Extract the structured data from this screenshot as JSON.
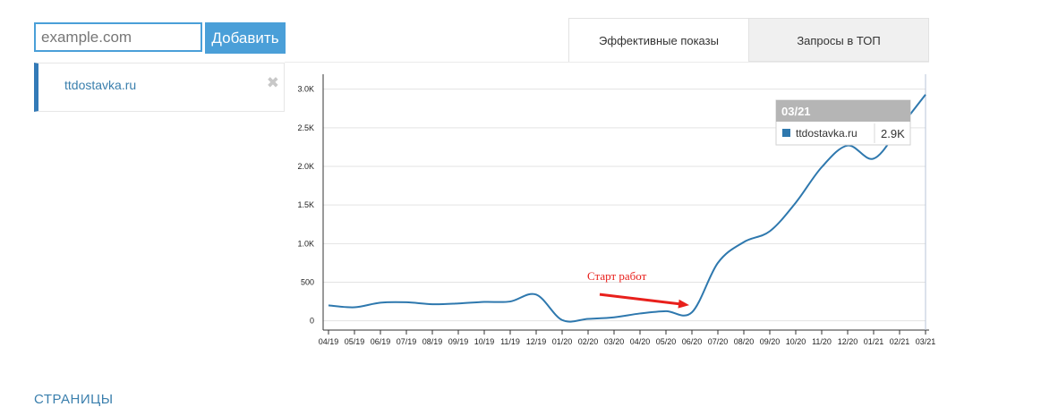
{
  "search": {
    "placeholder": "example.com"
  },
  "add_button": {
    "label": "Добавить"
  },
  "sites": [
    {
      "name": "ttdostavka.ru"
    }
  ],
  "tabs": [
    {
      "label": "Эффективные показы"
    },
    {
      "label": "Запросы в ТОП"
    }
  ],
  "bottom_link": "СТРАНИЦЫ",
  "chart_data": {
    "type": "line",
    "categories": [
      "04/19",
      "05/19",
      "06/19",
      "07/19",
      "08/19",
      "09/19",
      "10/19",
      "11/19",
      "12/19",
      "01/20",
      "02/20",
      "03/20",
      "04/20",
      "05/20",
      "06/20",
      "07/20",
      "08/20",
      "09/20",
      "10/20",
      "11/20",
      "12/20",
      "01/21",
      "02/21",
      "03/21"
    ],
    "series": [
      {
        "name": "ttdostavka.ru",
        "color": "#2e78ae",
        "values": [
          200,
          175,
          235,
          240,
          215,
          225,
          245,
          250,
          340,
          10,
          25,
          45,
          95,
          125,
          110,
          750,
          1020,
          1160,
          1530,
          1990,
          2270,
          2100,
          2500,
          2930
        ]
      }
    ],
    "yticks": [
      0,
      500,
      1000,
      1500,
      2000,
      2500,
      3000
    ],
    "ytick_labels": [
      "0",
      "500",
      "1.0K",
      "1.5K",
      "2.0K",
      "2.5K",
      "3.0K"
    ],
    "ylim": [
      -120,
      3170
    ],
    "grid": true,
    "annotation": {
      "text": "Старт работ",
      "color": "#e8201c",
      "target_category": "06/20"
    },
    "tooltip": {
      "title": "03/21",
      "series": "ttdostavka.ru",
      "value": "2.9K"
    }
  }
}
